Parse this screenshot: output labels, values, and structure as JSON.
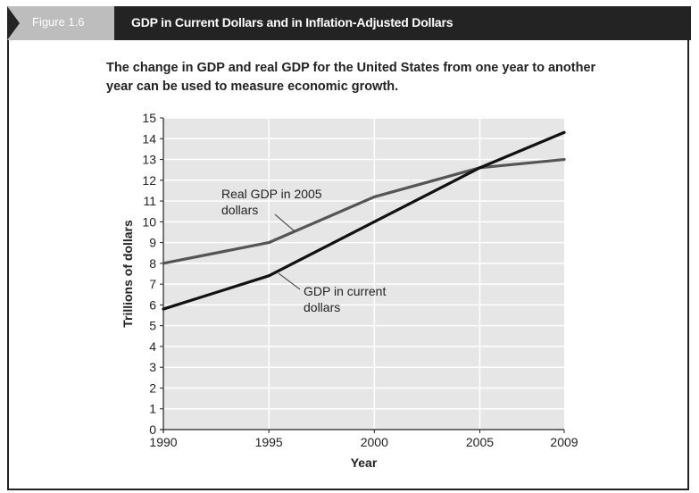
{
  "figure": {
    "number_label": "Figure 1.6",
    "title": "GDP in Current Dollars and in Inflation-Adjusted Dollars",
    "caption": "The change in GDP and real GDP for the United States from one year to another year can be used to measure economic growth."
  },
  "colors": {
    "header": "#232323",
    "tab": "#bdbdbd",
    "plot_background": "#e6e6e6",
    "grid": "#ffffff",
    "series_real": "#555555",
    "series_current": "#111111"
  },
  "chart_data": {
    "type": "line",
    "title": "",
    "xlabel": "Year",
    "ylabel": "Trillions of dollars",
    "x": [
      1990,
      1995,
      2000,
      2005,
      2009
    ],
    "xticks": [
      "1990",
      "1995",
      "2000",
      "2005",
      "2009"
    ],
    "ylim": [
      0,
      15
    ],
    "yticks": [
      "0",
      "1",
      "2",
      "3",
      "4",
      "5",
      "6",
      "7",
      "8",
      "9",
      "10",
      "11",
      "12",
      "13",
      "14",
      "15"
    ],
    "grid": true,
    "series": [
      {
        "name": "Real GDP in 2005 dollars",
        "values": [
          8.0,
          9.0,
          11.2,
          12.6,
          13.0
        ]
      },
      {
        "name": "GDP in current dollars",
        "values": [
          5.8,
          7.4,
          10.0,
          12.6,
          14.3
        ]
      }
    ],
    "annotations": [
      {
        "lines": [
          "Real GDP in 2005",
          "dollars"
        ],
        "series": 0,
        "anchor_x": 1996
      },
      {
        "lines": [
          "GDP in current",
          "dollars"
        ],
        "series": 1,
        "anchor_x": 1996
      }
    ]
  }
}
